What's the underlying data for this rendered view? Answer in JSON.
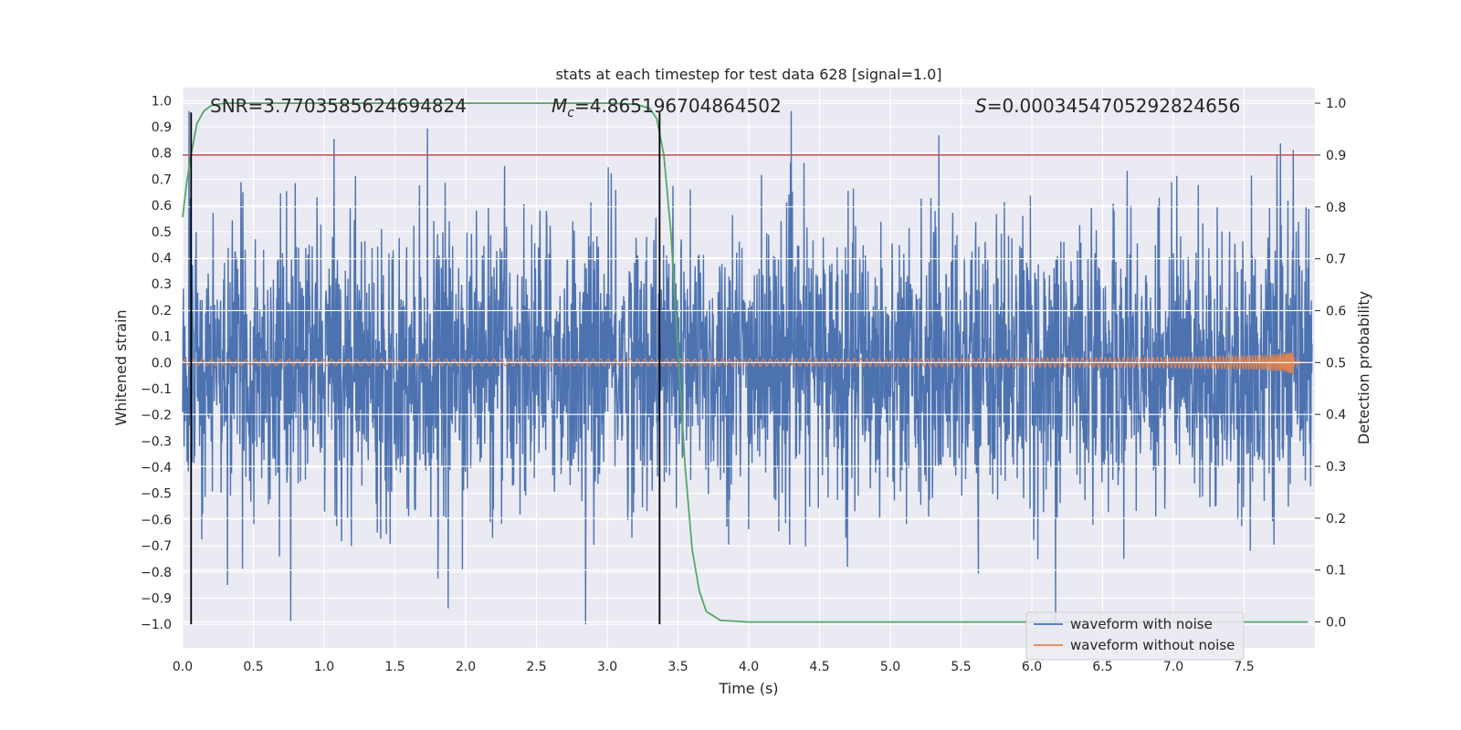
{
  "chart_data": {
    "type": "line",
    "title": "stats at each timestep for test data 628 [signal=1.0]",
    "xlabel": "Time (s)",
    "ylabel": "Whitened strain",
    "ylabel_right": "Detection probability",
    "xlim": [
      0.0,
      8.0
    ],
    "ylim": [
      -1.09,
      1.05
    ],
    "ylim_right": [
      -0.05,
      1.03
    ],
    "x_ticks": [
      0.0,
      0.5,
      1.0,
      1.5,
      2.0,
      2.5,
      3.0,
      3.5,
      4.0,
      4.5,
      5.0,
      5.5,
      6.0,
      6.5,
      7.0,
      7.5
    ],
    "x_tick_labels": [
      "0.0",
      "0.5",
      "1.0",
      "1.5",
      "2.0",
      "2.5",
      "3.0",
      "3.5",
      "4.0",
      "4.5",
      "5.0",
      "5.5",
      "6.0",
      "6.5",
      "7.0",
      "7.5"
    ],
    "y_ticks": [
      1.0,
      0.9,
      0.8,
      0.7,
      0.6,
      0.5,
      0.4,
      0.3,
      0.2,
      0.1,
      0.0,
      -0.1,
      -0.2,
      -0.3,
      -0.4,
      -0.5,
      -0.6,
      -0.7,
      -0.8,
      -0.9,
      -1.0
    ],
    "y_tick_labels": [
      "1.0",
      "0.9",
      "0.8",
      "0.7",
      "0.6",
      "0.5",
      "0.4",
      "0.3",
      "0.2",
      "0.1",
      "0.0",
      "−0.1",
      "−0.2",
      "−0.3",
      "−0.4",
      "−0.5",
      "−0.6",
      "−0.7",
      "−0.8",
      "−0.9",
      "−1.0"
    ],
    "y_ticks_right": [
      1.0,
      0.9,
      0.8,
      0.7,
      0.6,
      0.5,
      0.4,
      0.3,
      0.2,
      0.1,
      0.0
    ],
    "y_tick_labels_right": [
      "1.0",
      "0.9",
      "0.8",
      "0.7",
      "0.6",
      "0.5",
      "0.4",
      "0.3",
      "0.2",
      "0.1",
      "0.0"
    ],
    "annotations": {
      "snr": "SNR=3.7703585624694824",
      "mc_symbol": "M",
      "mc_subscript": "c",
      "mc_value": "=4.865196704864502",
      "s_symbol": "S",
      "s_value": "=0.0003454705292824656"
    },
    "threshold": {
      "axis": "right",
      "value": 0.9,
      "color": "#c44e52"
    },
    "vertical_markers": [
      0.06,
      3.37
    ],
    "series": [
      {
        "name": "waveform with noise",
        "color": "#4c72b0",
        "kind": "noise",
        "axis": "left",
        "typical_amplitude": 0.35,
        "envelope_max": 0.96,
        "envelope_min": -1.0
      },
      {
        "name": "waveform without noise",
        "color": "#dd8452",
        "kind": "chirp",
        "axis": "left",
        "amplitude_start": 0.012,
        "amplitude_peak": 0.1,
        "merger_time": 7.85
      },
      {
        "name": "detection probability",
        "color": "#55a868",
        "kind": "probability",
        "axis": "right",
        "x": [
          0.0,
          0.03,
          0.06,
          0.1,
          0.15,
          0.2,
          0.25,
          0.3,
          0.4,
          0.6,
          1.0,
          2.0,
          3.0,
          3.2,
          3.3,
          3.35,
          3.4,
          3.45,
          3.5,
          3.55,
          3.6,
          3.65,
          3.7,
          3.8,
          4.0,
          5.0,
          6.0,
          7.0,
          7.5,
          7.95
        ],
        "y": [
          0.78,
          0.85,
          0.9,
          0.96,
          0.985,
          0.995,
          0.998,
          1.0,
          1.0,
          1.0,
          1.0,
          1.0,
          1.0,
          0.998,
          0.99,
          0.97,
          0.9,
          0.75,
          0.52,
          0.3,
          0.14,
          0.06,
          0.02,
          0.003,
          0.0,
          0.0,
          0.0,
          0.0,
          0.0,
          0.0
        ]
      }
    ],
    "legend": {
      "placement": "lower-right",
      "entries": [
        "waveform with noise",
        "waveform without noise"
      ]
    }
  }
}
